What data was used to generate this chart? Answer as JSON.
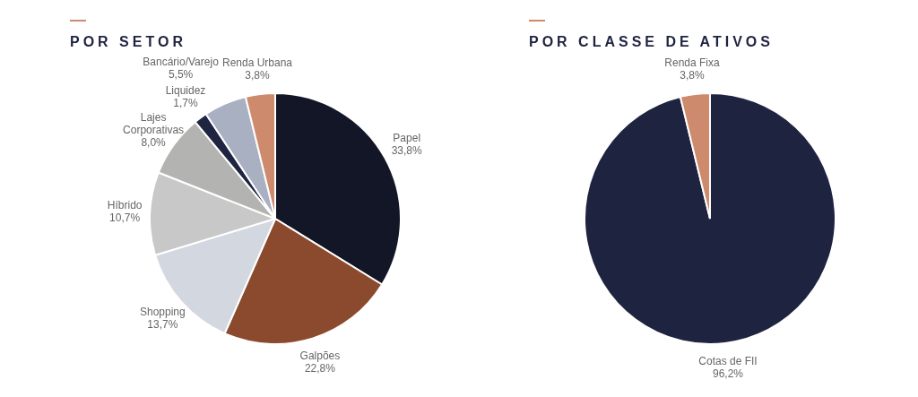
{
  "chart_data": [
    {
      "type": "pie",
      "title": "POR SETOR",
      "categories": [
        "Papel",
        "Galpões",
        "Shopping",
        "Híbrido",
        "Lajes Corporativas",
        "Liquidez",
        "Bancário/Varejo",
        "Renda Urbana"
      ],
      "values": [
        33.8,
        22.8,
        13.7,
        10.7,
        8.0,
        1.7,
        5.5,
        3.8
      ],
      "value_labels": [
        "33,8%",
        "22,8%",
        "13,7%",
        "10,7%",
        "8,0%",
        "1,7%",
        "5,5%",
        "3,8%"
      ],
      "colors": [
        "#131626",
        "#8b4a2e",
        "#d3d8e0",
        "#c8c8c8",
        "#b3b3b1",
        "#1f2540",
        "#a9b0c2",
        "#cd8a6c"
      ]
    },
    {
      "type": "pie",
      "title": "POR CLASSE DE ATIVOS",
      "categories": [
        "Cotas de FII",
        "Renda Fixa"
      ],
      "values": [
        96.2,
        3.8
      ],
      "value_labels": [
        "96,2%",
        "3,8%"
      ],
      "colors": [
        "#1e2340",
        "#cd8a6c"
      ]
    }
  ]
}
